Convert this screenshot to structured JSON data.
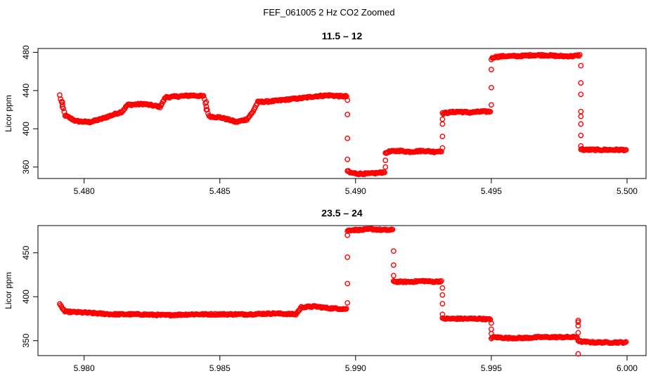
{
  "figure": {
    "suptitle": "FEF_061005  2 Hz CO2 Zoomed"
  },
  "chart_data": [
    {
      "type": "scatter",
      "title": "11.5 – 12",
      "xlabel": "",
      "ylabel": "Licor ppm",
      "xlim": [
        5.4783,
        5.5007
      ],
      "ylim": [
        348,
        484
      ],
      "xticks": [
        5.48,
        5.485,
        5.49,
        5.495,
        5.5
      ],
      "xtick_labels": [
        "5.480",
        "5.485",
        "5.490",
        "5.495",
        "5.500"
      ],
      "yticks": [
        360,
        400,
        440,
        480
      ],
      "ytick_labels": [
        "360",
        "400",
        "440",
        "480"
      ],
      "grid": false,
      "legend": "none",
      "marker": "open-circle",
      "color": "#ff0000",
      "segments": [
        {
          "x": [
            5.4791,
            5.4793,
            5.4797,
            5.4802,
            5.4806,
            5.481,
            5.4814,
            5.4816,
            5.4822,
            5.4826,
            5.4828,
            5.483,
            5.4835,
            5.484,
            5.4844,
            5.4846,
            5.485,
            5.4854,
            5.4856,
            5.486,
            5.4862,
            5.4864,
            5.487,
            5.4876,
            5.488,
            5.4885,
            5.489,
            5.4895,
            5.4897
          ],
          "y": [
            435,
            414,
            408,
            407,
            410,
            414,
            418,
            425,
            426,
            424,
            423,
            433,
            434,
            435,
            434,
            413,
            412,
            409,
            407,
            410,
            417,
            428,
            429,
            431,
            432,
            434,
            435,
            434,
            434
          ]
        },
        {
          "x": [
            5.4897,
            5.4898,
            5.4901,
            5.4905,
            5.4909,
            5.4911
          ],
          "y": [
            356,
            354,
            353,
            353,
            354,
            355
          ]
        },
        {
          "x": [
            5.4911,
            5.4912,
            5.4916,
            5.492,
            5.4925,
            5.4929,
            5.4932
          ],
          "y": [
            374,
            376,
            377,
            376,
            377,
            376,
            377
          ]
        },
        {
          "x": [
            5.4932,
            5.4934,
            5.4938,
            5.4942,
            5.4946,
            5.495
          ],
          "y": [
            416,
            417,
            418,
            417,
            418,
            418
          ]
        },
        {
          "x": [
            5.495,
            5.4951,
            5.4955,
            5.496,
            5.4965,
            5.497,
            5.4975,
            5.498,
            5.4983
          ],
          "y": [
            473,
            475,
            476,
            476,
            477,
            477,
            476,
            476,
            477
          ]
        },
        {
          "x": [
            5.4983,
            5.4984,
            5.4988,
            5.4992,
            5.4996,
            5.5
          ],
          "y": [
            379,
            378,
            378,
            378,
            378,
            378
          ]
        }
      ],
      "transitions": [
        {
          "x": 5.4897,
          "y": [
            430,
            415,
            390,
            368
          ]
        },
        {
          "x": 5.4911,
          "y": [
            360,
            367
          ]
        },
        {
          "x": 5.4932,
          "y": [
            380,
            392,
            405,
            410
          ]
        },
        {
          "x": 5.495,
          "y": [
            425,
            443,
            462
          ]
        },
        {
          "x": 5.4983,
          "y": [
            466,
            448,
            436,
            418,
            413,
            405,
            393,
            382
          ]
        },
        {
          "x": 5.4845,
          "y": [
            428,
            420
          ]
        },
        {
          "x": 5.4792,
          "y": [
            428,
            423
          ]
        }
      ]
    },
    {
      "type": "scatter",
      "title": "23.5 – 24",
      "xlabel": "",
      "ylabel": "Licor ppm",
      "xlim": [
        5.9783,
        6.0007
      ],
      "ylim": [
        333,
        481
      ],
      "xticks": [
        5.98,
        5.985,
        5.99,
        5.995,
        6.0
      ],
      "xtick_labels": [
        "5.980",
        "5.985",
        "5.990",
        "5.995",
        "6.000"
      ],
      "yticks": [
        350,
        400,
        450
      ],
      "ytick_labels": [
        "350",
        "400",
        "450"
      ],
      "grid": false,
      "legend": "none",
      "marker": "open-circle",
      "color": "#ff0000",
      "segments": [
        {
          "x": [
            5.9791,
            5.9793,
            5.98,
            5.981,
            5.982,
            5.983,
            5.984,
            5.985,
            5.986,
            5.987,
            5.9878,
            5.988,
            5.9885,
            5.989,
            5.9897
          ],
          "y": [
            391,
            383,
            382,
            380,
            380,
            379,
            380,
            380,
            380,
            381,
            380,
            388,
            389,
            387,
            386
          ]
        },
        {
          "x": [
            5.9897,
            5.9898,
            5.9902,
            5.9906,
            5.991,
            5.9914
          ],
          "y": [
            475,
            476,
            476,
            477,
            476,
            476
          ]
        },
        {
          "x": [
            5.9914,
            5.9915,
            5.992,
            5.9925,
            5.9929,
            5.9932
          ],
          "y": [
            418,
            417,
            417,
            418,
            417,
            418
          ]
        },
        {
          "x": [
            5.9932,
            5.9934,
            5.9938,
            5.9942,
            5.9946,
            5.995
          ],
          "y": [
            375,
            375,
            375,
            375,
            375,
            374
          ]
        },
        {
          "x": [
            5.995,
            5.9951,
            5.9956,
            5.9962,
            5.9968,
            5.9975,
            5.9982
          ],
          "y": [
            353,
            354,
            353,
            353,
            354,
            354,
            354
          ]
        },
        {
          "x": [
            5.9982,
            5.9983,
            5.9988,
            5.9993,
            6.0
          ],
          "y": [
            350,
            349,
            348,
            348,
            348
          ]
        }
      ],
      "transitions": [
        {
          "x": 5.9897,
          "y": [
            393,
            415,
            445,
            470
          ]
        },
        {
          "x": 5.9914,
          "y": [
            452,
            436,
            424
          ]
        },
        {
          "x": 5.9932,
          "y": [
            410,
            402,
            392,
            380
          ]
        },
        {
          "x": 5.995,
          "y": [
            370,
            363,
            358
          ]
        },
        {
          "x": 5.9982,
          "y": [
            335,
            359,
            367,
            371,
            373
          ]
        }
      ]
    }
  ]
}
